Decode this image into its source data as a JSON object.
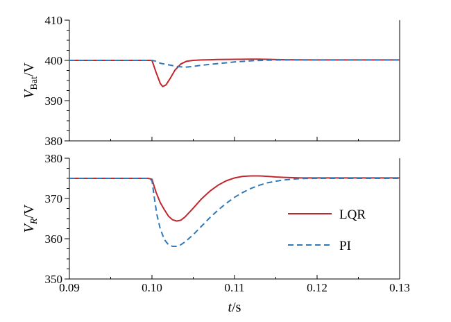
{
  "chart_data": [
    {
      "type": "line",
      "ylabel_main": "V",
      "ylabel_sub": "Bat",
      "ylabel_unit": "/V",
      "xlim": [
        0.09,
        0.13
      ],
      "ylim": [
        380,
        410
      ],
      "yticks": [
        380,
        390,
        400,
        410
      ],
      "ytick_labels": [
        "380",
        "390",
        "400",
        "410"
      ],
      "series": [
        {
          "name": "LQR",
          "color": "#c0272d",
          "dash": "solid",
          "x": [
            0.09,
            0.0995,
            0.1,
            0.1005,
            0.101,
            0.1013,
            0.1017,
            0.1022,
            0.1028,
            0.1035,
            0.1042,
            0.105,
            0.106,
            0.107,
            0.108,
            0.11,
            0.112,
            0.113,
            0.114,
            0.116,
            0.12,
            0.13
          ],
          "y": [
            400,
            400,
            400,
            397,
            394.3,
            393.5,
            393.9,
            395.5,
            397.6,
            399.1,
            399.8,
            400,
            400.1,
            400.15,
            400.2,
            400.25,
            400.3,
            400.3,
            400.25,
            400.15,
            400.1,
            400.1
          ]
        },
        {
          "name": "PI",
          "color": "#2e78b7",
          "dash": "dashed",
          "x": [
            0.09,
            0.0995,
            0.1,
            0.1005,
            0.101,
            0.102,
            0.103,
            0.104,
            0.105,
            0.106,
            0.108,
            0.11,
            0.112,
            0.114,
            0.116,
            0.12,
            0.13
          ],
          "y": [
            400,
            400,
            400,
            399.8,
            399.3,
            398.9,
            398.5,
            398.3,
            398.5,
            398.8,
            399.2,
            399.6,
            399.9,
            400.05,
            400.1,
            400.1,
            400.1
          ]
        }
      ]
    },
    {
      "type": "line",
      "ylabel_main": "V",
      "ylabel_sub": "R",
      "ylabel_unit": "/V",
      "xlabel_main": "t",
      "xlabel_unit": "/s",
      "xlim": [
        0.09,
        0.13
      ],
      "ylim": [
        350,
        380
      ],
      "yticks": [
        350,
        360,
        370,
        380
      ],
      "ytick_labels": [
        "350",
        "360",
        "370",
        "380"
      ],
      "xticks": [
        0.09,
        0.1,
        0.11,
        0.12,
        0.13
      ],
      "xtick_labels": [
        "0.09",
        "0.10",
        "0.11",
        "0.12",
        "0.13"
      ],
      "legend_position": "right",
      "series": [
        {
          "name": "LQR",
          "color": "#c0272d",
          "dash": "solid",
          "x": [
            0.09,
            0.0995,
            0.1,
            0.1005,
            0.101,
            0.1015,
            0.102,
            0.1025,
            0.103,
            0.1035,
            0.104,
            0.105,
            0.106,
            0.107,
            0.108,
            0.109,
            0.11,
            0.111,
            0.112,
            0.113,
            0.114,
            0.115,
            0.116,
            0.118,
            0.12,
            0.13
          ],
          "y": [
            375,
            375,
            374.8,
            371.5,
            369,
            367.2,
            365.6,
            364.7,
            364.4,
            364.6,
            365.4,
            367.6,
            369.9,
            371.8,
            373.3,
            374.4,
            375.1,
            375.5,
            375.6,
            375.6,
            375.5,
            375.35,
            375.25,
            375.1,
            375.1,
            375.1
          ]
        },
        {
          "name": "PI",
          "color": "#2e78b7",
          "dash": "dashed",
          "x": [
            0.09,
            0.0995,
            0.1,
            0.1003,
            0.1006,
            0.101,
            0.1015,
            0.102,
            0.1025,
            0.103,
            0.1035,
            0.104,
            0.105,
            0.106,
            0.107,
            0.108,
            0.109,
            0.11,
            0.111,
            0.112,
            0.113,
            0.114,
            0.115,
            0.116,
            0.117,
            0.118,
            0.12,
            0.13
          ],
          "y": [
            375,
            375,
            374.5,
            370,
            366,
            362.5,
            359.8,
            358.5,
            358.1,
            358.1,
            358.5,
            359.2,
            361,
            363.1,
            365.2,
            367.1,
            368.8,
            370.3,
            371.5,
            372.5,
            373.3,
            373.9,
            374.3,
            374.6,
            374.8,
            374.95,
            375,
            375
          ]
        }
      ]
    }
  ]
}
